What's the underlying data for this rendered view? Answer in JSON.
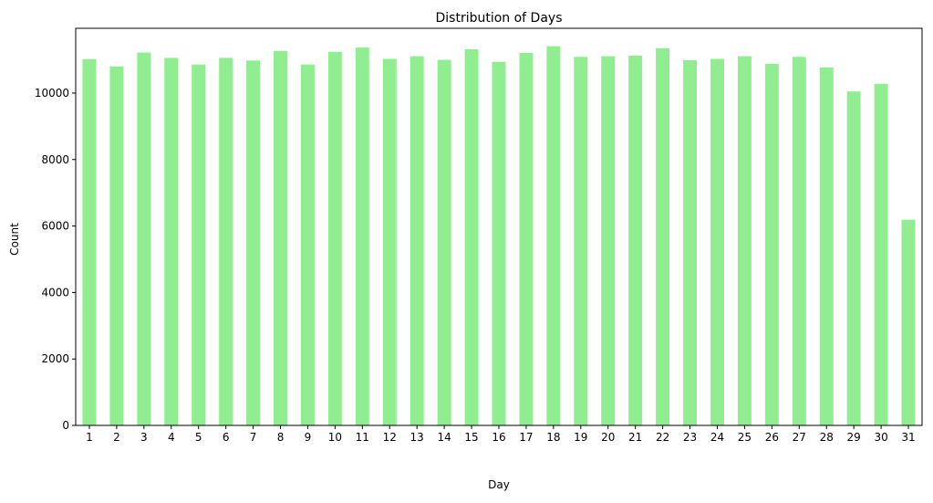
{
  "chart_data": {
    "type": "bar",
    "title": "Distribution of Days",
    "xlabel": "Day",
    "ylabel": "Count",
    "ylim": [
      0,
      11950
    ],
    "yticks": [
      0,
      2000,
      4000,
      6000,
      8000,
      10000
    ],
    "grid": false,
    "bar_color": "#90ee90",
    "categories": [
      "1",
      "2",
      "3",
      "4",
      "5",
      "6",
      "7",
      "8",
      "9",
      "10",
      "11",
      "12",
      "13",
      "14",
      "15",
      "16",
      "17",
      "18",
      "19",
      "20",
      "21",
      "22",
      "23",
      "24",
      "25",
      "26",
      "27",
      "28",
      "29",
      "30",
      "31"
    ],
    "values": [
      11020,
      10800,
      11220,
      11060,
      10860,
      11060,
      10980,
      11270,
      10860,
      11240,
      11370,
      11030,
      11110,
      11000,
      11320,
      10940,
      11210,
      11410,
      11090,
      11110,
      11130,
      11350,
      10990,
      11030,
      11110,
      10880,
      11090,
      10770,
      10050,
      10280,
      6190
    ]
  }
}
